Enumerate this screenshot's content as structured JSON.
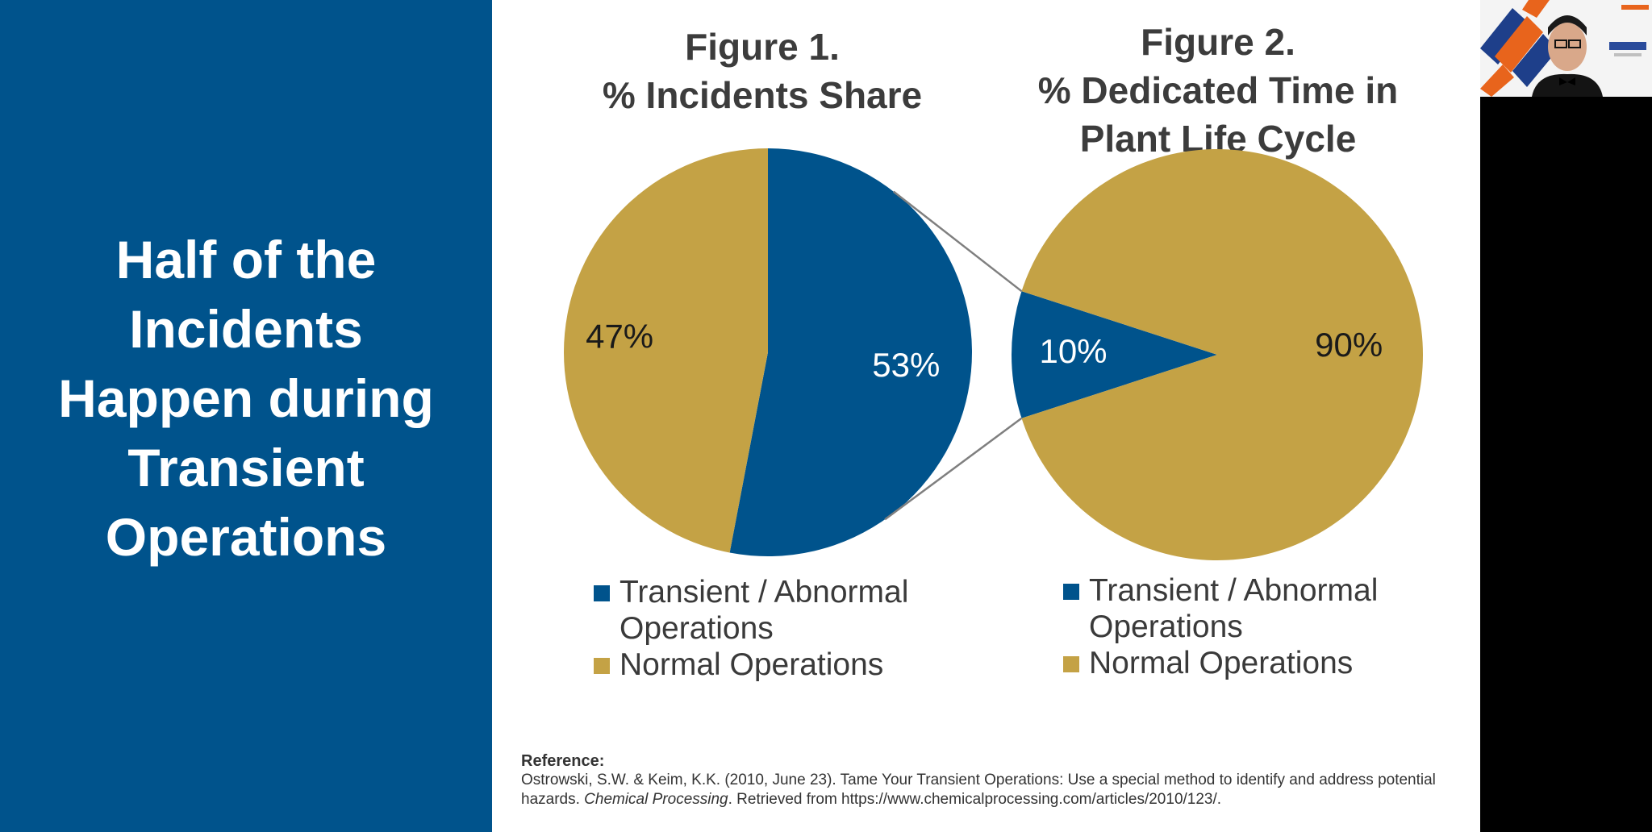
{
  "left_panel": {
    "title_lines": [
      "Half of the",
      "Incidents",
      "Happen during",
      "Transient",
      "Operations"
    ]
  },
  "figure1": {
    "title": "Figure 1.\n% Incidents Share"
  },
  "figure2": {
    "title": "Figure 2.\n% Dedicated Time in\nPlant Life Cycle"
  },
  "chart_data": [
    {
      "type": "pie",
      "title": "Figure 1. % Incidents Share",
      "categories": [
        "Transient / Abnormal Operations",
        "Normal Operations"
      ],
      "values": [
        53,
        47
      ],
      "labels": [
        "53%",
        "47%"
      ],
      "colors": [
        "#00538c",
        "#c4a245"
      ],
      "label_colors": [
        "#ffffff",
        "#1a1a1a"
      ],
      "legend": "bottom"
    },
    {
      "type": "pie",
      "title": "Figure 2. % Dedicated Time in Plant Life Cycle",
      "categories": [
        "Transient / Abnormal Operations",
        "Normal Operations"
      ],
      "values": [
        10,
        90
      ],
      "labels": [
        "10%",
        "90%"
      ],
      "colors": [
        "#00538c",
        "#c4a245"
      ],
      "label_colors": [
        "#ffffff",
        "#1a1a1a"
      ],
      "legend": "bottom"
    }
  ],
  "legend1": {
    "item1_line1": "Transient / Abnormal",
    "item1_line2": "Operations",
    "item2": "Normal Operations"
  },
  "legend2": {
    "item1_line1": "Transient / Abnormal",
    "item1_line2": "Operations",
    "item2": "Normal Operations"
  },
  "reference": {
    "heading": "Reference:",
    "citation_part1": "Ostrowski, S.W. & Keim, K.K. (2010, June 23). Tame Your Transient Operations: Use a special method to identify and address potential hazards. ",
    "source": "Chemical Processing",
    "citation_part2": ". Retrieved from https://www.chemicalprocessing.com/articles/2010/123/."
  },
  "colors": {
    "brand_blue": "#00538c",
    "gold": "#c4a245",
    "title_gray": "#3c3c3c"
  }
}
